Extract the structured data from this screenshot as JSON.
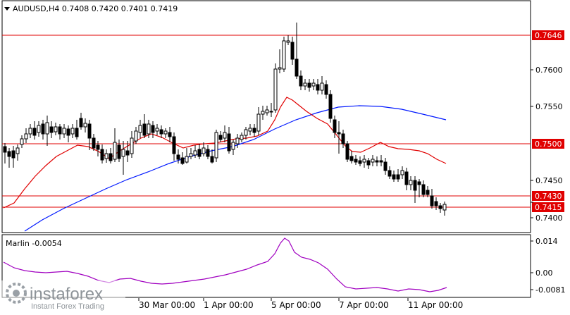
{
  "header": {
    "symbol_line": "AUDUSD,H4  0.7408 0.7420 0.7401 0.7419",
    "dropdown_icon": "triangle-down-icon"
  },
  "main_chart": {
    "price_ticks": [
      "0.7600",
      "0.7550",
      "0.7450",
      "0.7400"
    ],
    "levels": [
      {
        "label": "0.7646",
        "value": 0.7646
      },
      {
        "label": "0.7500",
        "value": 0.75
      },
      {
        "label": "0.7430",
        "value": 0.743
      },
      {
        "label": "0.7415",
        "value": 0.7415
      }
    ],
    "level_color": "#e00000",
    "candle_color": "#000000",
    "ma_fast_color": "#e00000",
    "ma_slow_color": "#0018ff"
  },
  "indicator": {
    "label": "Marlin -0.0054",
    "ticks": [
      "0.014",
      "0.00",
      "-0.0081"
    ],
    "line_color": "#a000c0"
  },
  "time_axis": {
    "labels": [
      "30 Mar 00:00",
      "1 Apr 00:00",
      "5 Apr 00:00",
      "7 Apr 00:00",
      "11 Apr 00:00"
    ]
  },
  "watermark": {
    "brand": "instaforex",
    "tagline": "Instant Forex Trading"
  }
}
